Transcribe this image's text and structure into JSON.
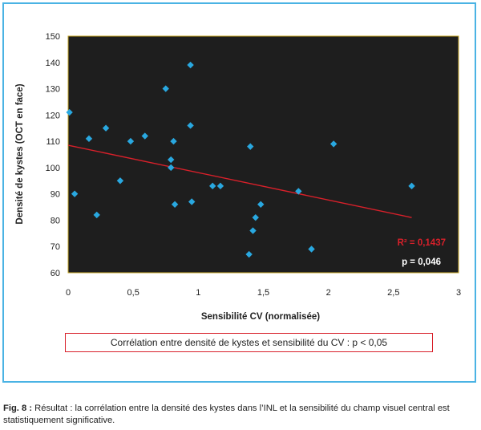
{
  "chart_data": {
    "type": "scatter",
    "xlabel": "Sensibilité CV (normalisée)",
    "ylabel": "Densité de kystes (OCT en face)",
    "xlim": [
      0,
      3
    ],
    "ylim": [
      60,
      150
    ],
    "x_ticks": [
      "0",
      "0,5",
      "1",
      "1,5",
      "2",
      "2,5",
      "3"
    ],
    "y_ticks": [
      "60",
      "70",
      "80",
      "90",
      "100",
      "110",
      "120",
      "130",
      "140",
      "150"
    ],
    "grid": false,
    "colors": {
      "background": "#1e1e1e",
      "points": "#29a8e0",
      "trendline": "#d8202a",
      "r2_text": "#d8202a",
      "p_text": "#ffffff"
    },
    "points": [
      {
        "x": 0.01,
        "y": 121
      },
      {
        "x": 0.05,
        "y": 90
      },
      {
        "x": 0.16,
        "y": 111
      },
      {
        "x": 0.22,
        "y": 82
      },
      {
        "x": 0.29,
        "y": 115
      },
      {
        "x": 0.4,
        "y": 95
      },
      {
        "x": 0.48,
        "y": 110
      },
      {
        "x": 0.59,
        "y": 112
      },
      {
        "x": 0.75,
        "y": 130
      },
      {
        "x": 0.79,
        "y": 103
      },
      {
        "x": 0.79,
        "y": 100
      },
      {
        "x": 0.81,
        "y": 110
      },
      {
        "x": 0.82,
        "y": 86
      },
      {
        "x": 0.94,
        "y": 139
      },
      {
        "x": 0.94,
        "y": 116
      },
      {
        "x": 0.95,
        "y": 87
      },
      {
        "x": 1.11,
        "y": 93
      },
      {
        "x": 1.17,
        "y": 93
      },
      {
        "x": 1.39,
        "y": 67
      },
      {
        "x": 1.4,
        "y": 108
      },
      {
        "x": 1.42,
        "y": 76
      },
      {
        "x": 1.44,
        "y": 81
      },
      {
        "x": 1.48,
        "y": 86
      },
      {
        "x": 1.77,
        "y": 91
      },
      {
        "x": 1.87,
        "y": 69
      },
      {
        "x": 2.04,
        "y": 109
      },
      {
        "x": 2.64,
        "y": 93
      }
    ],
    "trendline": {
      "x": [
        0,
        2.64
      ],
      "y": [
        108.5,
        81
      ]
    },
    "annotations": {
      "r2": "R² = 0,1437",
      "p": "p = 0,046"
    }
  },
  "note": "Corrélation entre densité de kystes et sensibilité du CV : p < 0,05",
  "caption": {
    "label": "Fig. 8 :",
    "text": " Résultat : la corrélation entre la densité des kystes dans l’INL et la sensibilité du champ visuel central est statistiquement significative."
  }
}
